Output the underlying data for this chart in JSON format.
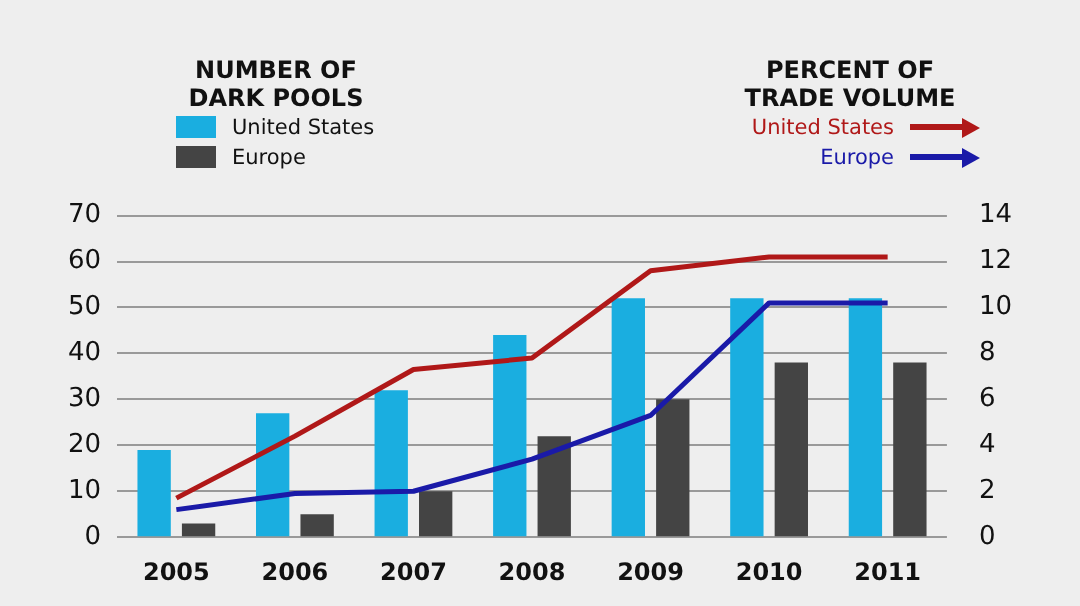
{
  "chart_data": {
    "type": "bar",
    "ylabel": "NUMBER OF DARK POOLS",
    "y2label": "PERCENT OF TRADE VOLUME",
    "categories": [
      "2005",
      "2006",
      "2007",
      "2008",
      "2009",
      "2010",
      "2011"
    ],
    "series": [
      {
        "name": "United States",
        "color": "#1aaee0",
        "values": [
          19,
          27,
          32,
          44,
          52,
          52,
          52
        ]
      },
      {
        "name": "Europe",
        "color": "#444444",
        "values": [
          3,
          5,
          10,
          22,
          30,
          38,
          38
        ]
      },
      {
        "name": "United States",
        "type": "line",
        "axis": "y2",
        "color": "#b01818",
        "values": [
          1.7,
          4.4,
          7.3,
          7.8,
          11.6,
          12.2,
          12.2
        ]
      },
      {
        "name": "Europe",
        "type": "line",
        "axis": "y2",
        "color": "#1a1aa8",
        "values": [
          1.2,
          1.9,
          2.0,
          3.4,
          5.3,
          10.2,
          10.2
        ]
      }
    ],
    "ylim": [
      0,
      70
    ],
    "yticks": [
      0,
      10,
      20,
      30,
      40,
      50,
      60,
      70
    ],
    "y2lim": [
      0,
      14
    ],
    "y2ticks": [
      0,
      2,
      4,
      6,
      8,
      10,
      12,
      14
    ],
    "grid": "y",
    "legend": "top",
    "marker": "none"
  }
}
